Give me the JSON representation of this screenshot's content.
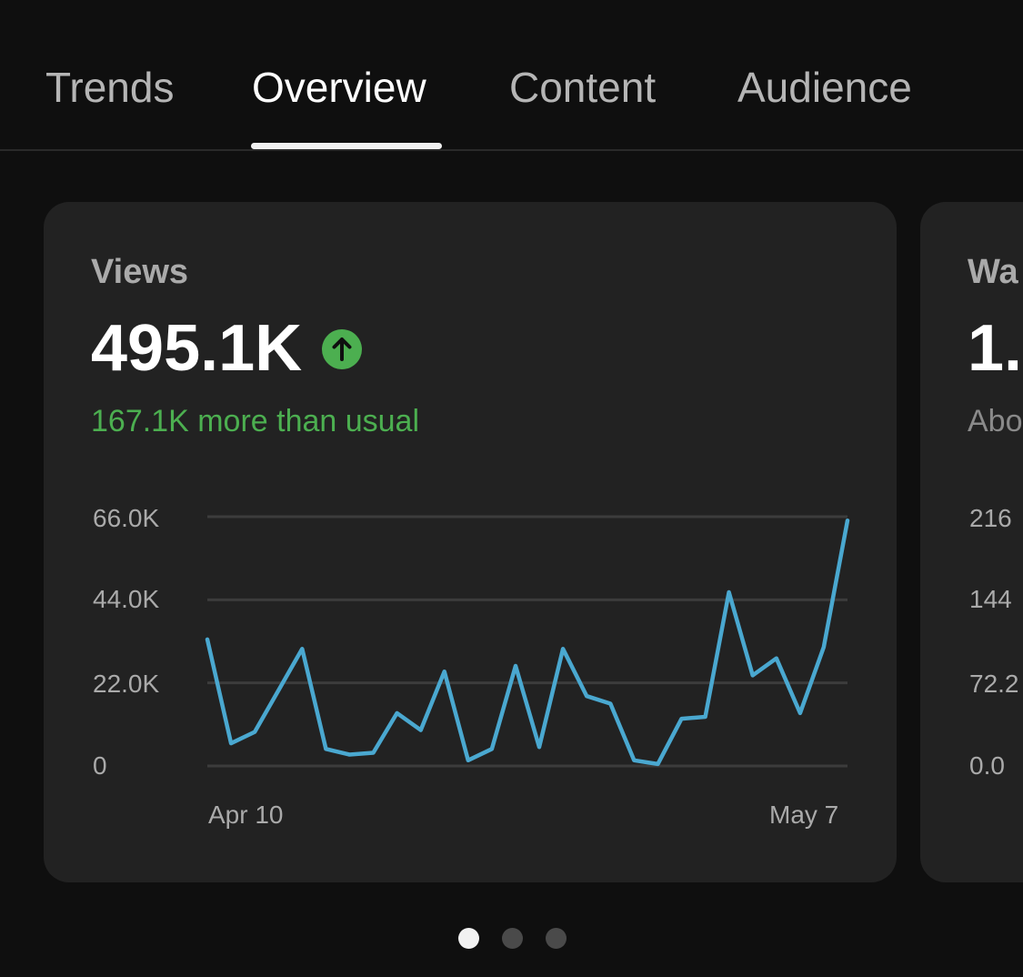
{
  "tabs": [
    {
      "label": "Trends",
      "active": false
    },
    {
      "label": "Overview",
      "active": true
    },
    {
      "label": "Content",
      "active": false
    },
    {
      "label": "Audience",
      "active": false
    }
  ],
  "cards": [
    {
      "label": "Views",
      "value": "495.1K",
      "trend_icon": "arrow-up-circle-icon",
      "trend_color": "#4caf50",
      "subtext": "167.1K more than usual",
      "subtext_color": "#4caf50",
      "line_color": "#4aa8d0",
      "chart_data": {
        "type": "line",
        "y_tick_labels": [
          "66.0K",
          "44.0K",
          "22.0K",
          "0"
        ],
        "x_tick_labels": [
          "Apr 10",
          "May 7"
        ],
        "ylim": [
          0,
          66000
        ],
        "xlim": [
          "Apr 10",
          "May 7"
        ],
        "grid": true,
        "x": [
          "Apr 10",
          "Apr 11",
          "Apr 12",
          "Apr 13",
          "Apr 14",
          "Apr 15",
          "Apr 16",
          "Apr 17",
          "Apr 18",
          "Apr 19",
          "Apr 20",
          "Apr 21",
          "Apr 22",
          "Apr 23",
          "Apr 24",
          "Apr 25",
          "Apr 26",
          "Apr 27",
          "Apr 28",
          "Apr 29",
          "Apr 30",
          "May 1",
          "May 2",
          "May 3",
          "May 4",
          "May 5",
          "May 6",
          "May 7"
        ],
        "values": [
          33500,
          6000,
          9000,
          20000,
          31000,
          4500,
          3000,
          3500,
          14000,
          9500,
          25000,
          1500,
          4500,
          26500,
          5000,
          31000,
          18500,
          16500,
          1500,
          500,
          12500,
          13000,
          46000,
          24000,
          28500,
          14000,
          31500,
          65000
        ]
      }
    },
    {
      "label": "Wa",
      "value": "1.(",
      "subtext": "Abo",
      "y_tick_labels": [
        "216",
        "144",
        "72.2",
        "0.0"
      ]
    }
  ],
  "pager": {
    "count": 3,
    "active_index": 0
  }
}
